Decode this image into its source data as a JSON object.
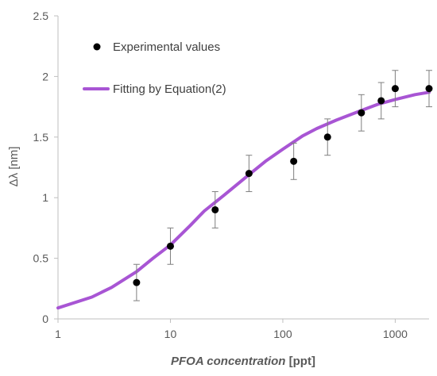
{
  "chart_data": {
    "type": "scatter",
    "x_scale": "log",
    "xlim": [
      1,
      2000
    ],
    "ylim": [
      0,
      2.5
    ],
    "x_ticks": [
      1,
      10,
      100,
      1000
    ],
    "x_tick_labels": [
      "1",
      "10",
      "100",
      "1000"
    ],
    "y_ticks": [
      0,
      0.5,
      1,
      1.5,
      2,
      2.5
    ],
    "y_tick_labels": [
      "0",
      "0.5",
      "1",
      "1.5",
      "2",
      "2.5"
    ],
    "xlabel_em": "PFOA concentration",
    "xlabel_unit": " [ppt]",
    "ylabel": "Δλ [nm]",
    "grid": false,
    "legend_position": "top-left",
    "series": [
      {
        "name": "Experimental values",
        "kind": "scatter",
        "color": "#000000",
        "x": [
          5,
          10,
          25,
          50,
          125,
          250,
          500,
          750,
          1000,
          2000
        ],
        "y": [
          0.3,
          0.6,
          0.9,
          1.2,
          1.3,
          1.5,
          1.7,
          1.8,
          1.9,
          1.9
        ],
        "error": [
          0.15,
          0.15,
          0.15,
          0.15,
          0.15,
          0.15,
          0.15,
          0.15,
          0.15,
          0.15
        ]
      },
      {
        "name": "Fitting by Equation(2)",
        "kind": "line",
        "color": "#a855d4",
        "x": [
          1,
          2,
          3,
          5,
          7,
          10,
          15,
          20,
          30,
          50,
          70,
          100,
          150,
          200,
          300,
          500,
          700,
          1000,
          1500,
          2000
        ],
        "y": [
          0.09,
          0.18,
          0.26,
          0.39,
          0.5,
          0.61,
          0.77,
          0.89,
          1.02,
          1.19,
          1.3,
          1.4,
          1.51,
          1.57,
          1.64,
          1.72,
          1.77,
          1.81,
          1.85,
          1.87
        ]
      }
    ]
  }
}
